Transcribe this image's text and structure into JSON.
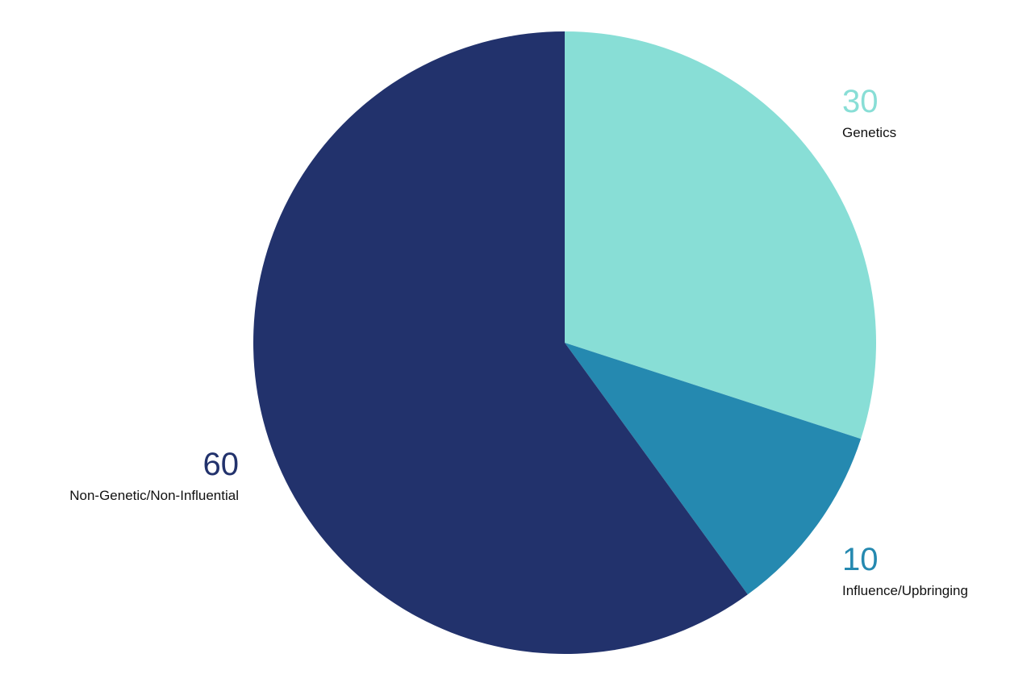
{
  "chart_data": {
    "type": "pie",
    "start_angle": "12 o'clock",
    "direction": "clockwise",
    "slices": [
      {
        "value": 30,
        "value_label": "30",
        "label": "Genetics",
        "color": "#88ded6"
      },
      {
        "value": 10,
        "value_label": "10",
        "label": "Influence/Upbringing",
        "color": "#2589b0"
      },
      {
        "value": 60,
        "value_label": "60",
        "label": "Non-Genetic/Non-Influential",
        "color": "#22326c"
      }
    ]
  }
}
